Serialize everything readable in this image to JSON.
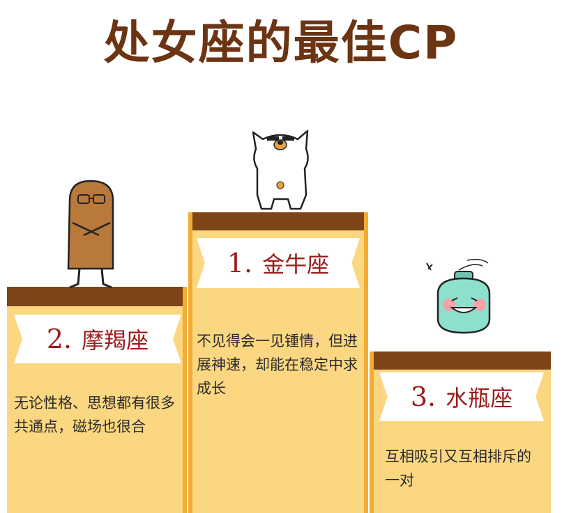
{
  "title": "处女座的最佳CP",
  "podiums": [
    {
      "rank": "1.",
      "sign": "金牛座",
      "desc": "不见得会一见锺情，但进展神速，却能在稳定中求成长"
    },
    {
      "rank": "2.",
      "sign": "摩羯座",
      "desc": "无论性格、思想都有很多共通点，磁场也很合"
    },
    {
      "rank": "3.",
      "sign": "水瓶座",
      "desc": "互相吸引又互相排斥的一对"
    }
  ],
  "colors": {
    "title": "#6b3413",
    "podium_fill": "#fcd781",
    "podium_cap": "#7e4518",
    "podium_edge": "#f3ac33",
    "rank_text": "#9b1b1b"
  },
  "icons": [
    "bear-character-icon",
    "potato-character-icon",
    "bottle-character-icon"
  ]
}
